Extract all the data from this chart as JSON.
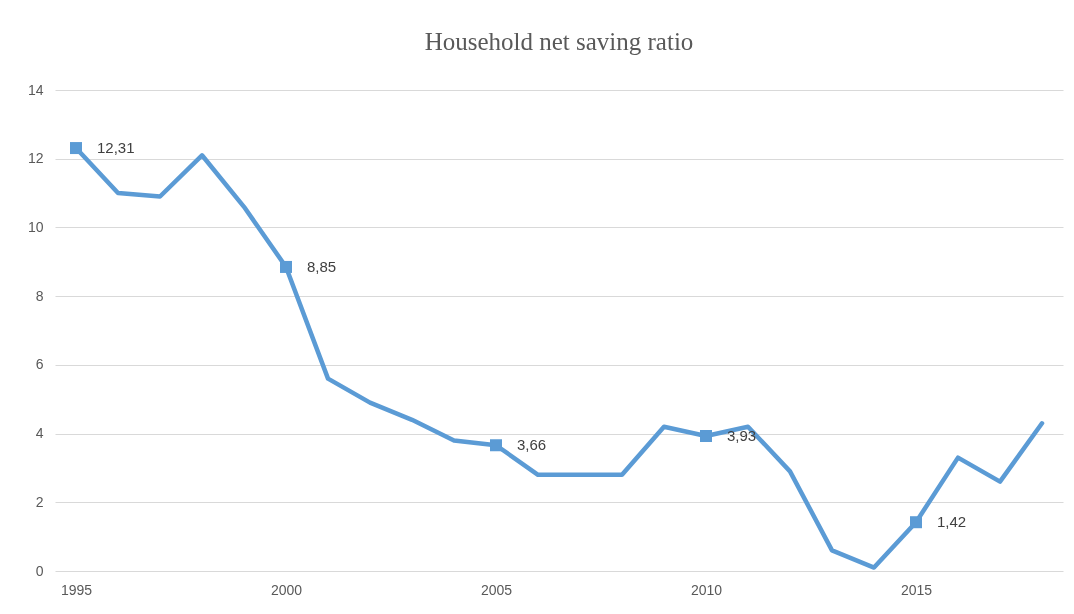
{
  "chart_data": {
    "type": "line",
    "title": "Household net saving ratio",
    "x": [
      1995,
      1996,
      1997,
      1998,
      1999,
      2000,
      2001,
      2002,
      2003,
      2004,
      2005,
      2006,
      2007,
      2008,
      2009,
      2010,
      2011,
      2012,
      2013,
      2014,
      2015,
      2016,
      2017,
      2018
    ],
    "series": [
      {
        "color": "#5b9bd5",
        "values": [
          12.31,
          11.0,
          10.9,
          12.1,
          10.6,
          8.85,
          5.6,
          4.9,
          4.4,
          3.8,
          3.66,
          2.8,
          2.8,
          2.8,
          4.2,
          3.93,
          4.2,
          2.9,
          0.6,
          0.1,
          1.42,
          3.3,
          2.6,
          4.3
        ]
      },
      {
        "type": "scatter",
        "color": "#5b9bd5",
        "marker": "square",
        "x": [
          1995,
          2000,
          2005,
          2010,
          2015
        ],
        "values": [
          12.31,
          8.85,
          3.66,
          3.93,
          1.42
        ],
        "value_labels": [
          "12,31",
          "8,85",
          "3,66",
          "3,93",
          "1,42"
        ]
      }
    ],
    "xlim": [
      1994.5,
      2018.5
    ],
    "xticks": [
      1995,
      2000,
      2005,
      2010,
      2015
    ],
    "ylim": [
      0,
      14
    ],
    "yticks": [
      0,
      2,
      4,
      6,
      8,
      10,
      12,
      14
    ],
    "grid": "y",
    "line_style": "solid"
  }
}
